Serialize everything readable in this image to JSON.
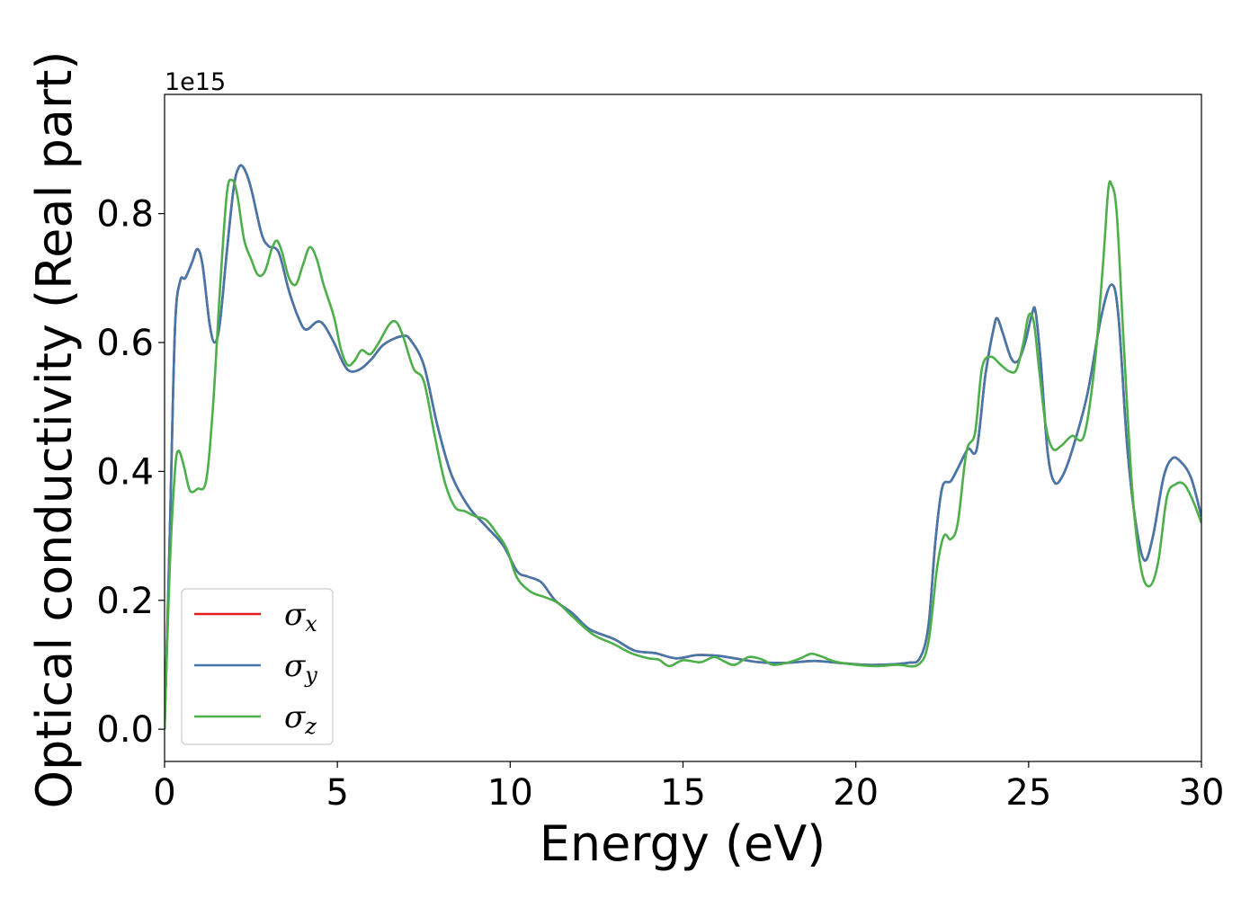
{
  "chart_data": {
    "type": "line",
    "xlabel": "Energy (eV)",
    "ylabel": "Optical conductivity (Real part)",
    "y_offset_text": "1e15",
    "xlim": [
      0,
      30
    ],
    "ylim": [
      -0.05,
      0.985
    ],
    "x_ticks": [
      0,
      5,
      10,
      15,
      20,
      25,
      30
    ],
    "x_tick_labels": [
      "0",
      "5",
      "10",
      "15",
      "20",
      "25",
      "30"
    ],
    "y_ticks": [
      0.0,
      0.2,
      0.4,
      0.6,
      0.8
    ],
    "y_tick_labels": [
      "0.0",
      "0.2",
      "0.4",
      "0.6",
      "0.8"
    ],
    "legend_position": "lower-left",
    "series": [
      {
        "name": "σx",
        "symbol": "σ",
        "subscript": "x",
        "color": "#e41a1c",
        "points": [
          [
            0,
            0
          ],
          [
            0.15,
            0.3
          ],
          [
            0.3,
            0.62
          ],
          [
            0.45,
            0.695
          ],
          [
            0.6,
            0.7
          ],
          [
            0.8,
            0.725
          ],
          [
            0.95,
            0.745
          ],
          [
            1.1,
            0.72
          ],
          [
            1.3,
            0.63
          ],
          [
            1.45,
            0.6
          ],
          [
            1.6,
            0.63
          ],
          [
            1.8,
            0.74
          ],
          [
            2.0,
            0.84
          ],
          [
            2.15,
            0.872
          ],
          [
            2.3,
            0.87
          ],
          [
            2.5,
            0.84
          ],
          [
            2.8,
            0.77
          ],
          [
            3.0,
            0.75
          ],
          [
            3.3,
            0.74
          ],
          [
            3.6,
            0.68
          ],
          [
            3.9,
            0.635
          ],
          [
            4.1,
            0.62
          ],
          [
            4.4,
            0.632
          ],
          [
            4.6,
            0.628
          ],
          [
            4.9,
            0.6
          ],
          [
            5.2,
            0.565
          ],
          [
            5.4,
            0.555
          ],
          [
            5.7,
            0.56
          ],
          [
            6.0,
            0.575
          ],
          [
            6.3,
            0.595
          ],
          [
            6.6,
            0.605
          ],
          [
            6.9,
            0.61
          ],
          [
            7.1,
            0.605
          ],
          [
            7.5,
            0.565
          ],
          [
            7.9,
            0.47
          ],
          [
            8.3,
            0.395
          ],
          [
            8.8,
            0.345
          ],
          [
            9.3,
            0.315
          ],
          [
            9.8,
            0.285
          ],
          [
            10.2,
            0.245
          ],
          [
            10.5,
            0.237
          ],
          [
            10.9,
            0.228
          ],
          [
            11.3,
            0.2
          ],
          [
            11.8,
            0.18
          ],
          [
            12.3,
            0.155
          ],
          [
            13.0,
            0.14
          ],
          [
            13.6,
            0.122
          ],
          [
            14.2,
            0.118
          ],
          [
            14.8,
            0.11
          ],
          [
            15.4,
            0.115
          ],
          [
            16.0,
            0.114
          ],
          [
            16.5,
            0.11
          ],
          [
            17.2,
            0.104
          ],
          [
            18.0,
            0.103
          ],
          [
            18.8,
            0.106
          ],
          [
            19.5,
            0.103
          ],
          [
            20.2,
            0.1
          ],
          [
            20.8,
            0.1
          ],
          [
            21.5,
            0.103
          ],
          [
            21.85,
            0.11
          ],
          [
            22.1,
            0.16
          ],
          [
            22.3,
            0.29
          ],
          [
            22.5,
            0.375
          ],
          [
            22.75,
            0.385
          ],
          [
            23.0,
            0.41
          ],
          [
            23.25,
            0.435
          ],
          [
            23.5,
            0.435
          ],
          [
            23.75,
            0.55
          ],
          [
            24.0,
            0.625
          ],
          [
            24.1,
            0.637
          ],
          [
            24.25,
            0.615
          ],
          [
            24.5,
            0.575
          ],
          [
            24.7,
            0.572
          ],
          [
            24.9,
            0.6
          ],
          [
            25.1,
            0.645
          ],
          [
            25.2,
            0.648
          ],
          [
            25.35,
            0.57
          ],
          [
            25.55,
            0.43
          ],
          [
            25.75,
            0.383
          ],
          [
            26.0,
            0.395
          ],
          [
            26.3,
            0.44
          ],
          [
            26.7,
            0.52
          ],
          [
            27.1,
            0.64
          ],
          [
            27.4,
            0.69
          ],
          [
            27.6,
            0.64
          ],
          [
            27.85,
            0.44
          ],
          [
            28.1,
            0.32
          ],
          [
            28.35,
            0.262
          ],
          [
            28.6,
            0.3
          ],
          [
            28.9,
            0.39
          ],
          [
            29.15,
            0.42
          ],
          [
            29.4,
            0.415
          ],
          [
            29.7,
            0.39
          ],
          [
            30.0,
            0.33
          ]
        ]
      },
      {
        "name": "σy",
        "symbol": "σ",
        "subscript": "y",
        "color": "#4477aa",
        "points": [
          [
            0,
            0
          ],
          [
            0.15,
            0.3
          ],
          [
            0.3,
            0.62
          ],
          [
            0.45,
            0.695
          ],
          [
            0.6,
            0.7
          ],
          [
            0.8,
            0.725
          ],
          [
            0.95,
            0.745
          ],
          [
            1.1,
            0.72
          ],
          [
            1.3,
            0.63
          ],
          [
            1.45,
            0.6
          ],
          [
            1.6,
            0.63
          ],
          [
            1.8,
            0.74
          ],
          [
            2.0,
            0.84
          ],
          [
            2.15,
            0.872
          ],
          [
            2.3,
            0.87
          ],
          [
            2.5,
            0.84
          ],
          [
            2.8,
            0.77
          ],
          [
            3.0,
            0.75
          ],
          [
            3.3,
            0.74
          ],
          [
            3.6,
            0.68
          ],
          [
            3.9,
            0.635
          ],
          [
            4.1,
            0.62
          ],
          [
            4.4,
            0.632
          ],
          [
            4.6,
            0.628
          ],
          [
            4.9,
            0.6
          ],
          [
            5.2,
            0.565
          ],
          [
            5.4,
            0.555
          ],
          [
            5.7,
            0.56
          ],
          [
            6.0,
            0.575
          ],
          [
            6.3,
            0.595
          ],
          [
            6.6,
            0.605
          ],
          [
            6.9,
            0.61
          ],
          [
            7.1,
            0.605
          ],
          [
            7.5,
            0.565
          ],
          [
            7.9,
            0.47
          ],
          [
            8.3,
            0.395
          ],
          [
            8.8,
            0.345
          ],
          [
            9.3,
            0.315
          ],
          [
            9.8,
            0.285
          ],
          [
            10.2,
            0.245
          ],
          [
            10.5,
            0.237
          ],
          [
            10.9,
            0.228
          ],
          [
            11.3,
            0.2
          ],
          [
            11.8,
            0.18
          ],
          [
            12.3,
            0.155
          ],
          [
            13.0,
            0.14
          ],
          [
            13.6,
            0.122
          ],
          [
            14.2,
            0.118
          ],
          [
            14.8,
            0.11
          ],
          [
            15.4,
            0.115
          ],
          [
            16.0,
            0.114
          ],
          [
            16.5,
            0.11
          ],
          [
            17.2,
            0.104
          ],
          [
            18.0,
            0.103
          ],
          [
            18.8,
            0.106
          ],
          [
            19.5,
            0.103
          ],
          [
            20.2,
            0.1
          ],
          [
            20.8,
            0.1
          ],
          [
            21.5,
            0.103
          ],
          [
            21.85,
            0.11
          ],
          [
            22.1,
            0.16
          ],
          [
            22.3,
            0.29
          ],
          [
            22.5,
            0.375
          ],
          [
            22.75,
            0.385
          ],
          [
            23.0,
            0.41
          ],
          [
            23.25,
            0.435
          ],
          [
            23.5,
            0.435
          ],
          [
            23.75,
            0.55
          ],
          [
            24.0,
            0.625
          ],
          [
            24.1,
            0.637
          ],
          [
            24.25,
            0.615
          ],
          [
            24.5,
            0.575
          ],
          [
            24.7,
            0.572
          ],
          [
            24.9,
            0.6
          ],
          [
            25.1,
            0.645
          ],
          [
            25.2,
            0.648
          ],
          [
            25.35,
            0.57
          ],
          [
            25.55,
            0.43
          ],
          [
            25.75,
            0.383
          ],
          [
            26.0,
            0.395
          ],
          [
            26.3,
            0.44
          ],
          [
            26.7,
            0.52
          ],
          [
            27.1,
            0.64
          ],
          [
            27.4,
            0.69
          ],
          [
            27.6,
            0.64
          ],
          [
            27.85,
            0.44
          ],
          [
            28.1,
            0.32
          ],
          [
            28.35,
            0.262
          ],
          [
            28.6,
            0.3
          ],
          [
            28.9,
            0.39
          ],
          [
            29.15,
            0.42
          ],
          [
            29.4,
            0.415
          ],
          [
            29.7,
            0.39
          ],
          [
            30.0,
            0.33
          ]
        ]
      },
      {
        "name": "σz",
        "symbol": "σ",
        "subscript": "z",
        "color": "#4daf4a",
        "points": [
          [
            0,
            0
          ],
          [
            0.15,
            0.25
          ],
          [
            0.3,
            0.4
          ],
          [
            0.4,
            0.432
          ],
          [
            0.55,
            0.41
          ],
          [
            0.7,
            0.375
          ],
          [
            0.8,
            0.368
          ],
          [
            0.95,
            0.373
          ],
          [
            1.2,
            0.385
          ],
          [
            1.4,
            0.5
          ],
          [
            1.6,
            0.68
          ],
          [
            1.8,
            0.83
          ],
          [
            1.95,
            0.852
          ],
          [
            2.1,
            0.83
          ],
          [
            2.3,
            0.76
          ],
          [
            2.5,
            0.73
          ],
          [
            2.7,
            0.705
          ],
          [
            2.9,
            0.71
          ],
          [
            3.1,
            0.745
          ],
          [
            3.25,
            0.758
          ],
          [
            3.4,
            0.74
          ],
          [
            3.6,
            0.7
          ],
          [
            3.8,
            0.69
          ],
          [
            4.0,
            0.72
          ],
          [
            4.2,
            0.748
          ],
          [
            4.4,
            0.73
          ],
          [
            4.6,
            0.69
          ],
          [
            4.9,
            0.64
          ],
          [
            5.1,
            0.59
          ],
          [
            5.3,
            0.565
          ],
          [
            5.5,
            0.572
          ],
          [
            5.7,
            0.588
          ],
          [
            5.95,
            0.582
          ],
          [
            6.2,
            0.6
          ],
          [
            6.5,
            0.628
          ],
          [
            6.7,
            0.632
          ],
          [
            6.9,
            0.61
          ],
          [
            7.2,
            0.56
          ],
          [
            7.5,
            0.54
          ],
          [
            7.8,
            0.46
          ],
          [
            8.1,
            0.385
          ],
          [
            8.4,
            0.345
          ],
          [
            8.7,
            0.338
          ],
          [
            9.0,
            0.33
          ],
          [
            9.3,
            0.325
          ],
          [
            9.6,
            0.305
          ],
          [
            9.9,
            0.28
          ],
          [
            10.2,
            0.235
          ],
          [
            10.6,
            0.213
          ],
          [
            11.0,
            0.205
          ],
          [
            11.4,
            0.195
          ],
          [
            11.8,
            0.175
          ],
          [
            12.4,
            0.147
          ],
          [
            13.0,
            0.132
          ],
          [
            13.5,
            0.118
          ],
          [
            14.0,
            0.11
          ],
          [
            14.3,
            0.108
          ],
          [
            14.6,
            0.098
          ],
          [
            15.0,
            0.107
          ],
          [
            15.5,
            0.104
          ],
          [
            15.9,
            0.112
          ],
          [
            16.2,
            0.105
          ],
          [
            16.5,
            0.1
          ],
          [
            16.9,
            0.112
          ],
          [
            17.3,
            0.108
          ],
          [
            17.6,
            0.1
          ],
          [
            18.0,
            0.103
          ],
          [
            18.4,
            0.11
          ],
          [
            18.7,
            0.117
          ],
          [
            19.0,
            0.113
          ],
          [
            19.4,
            0.105
          ],
          [
            20.0,
            0.1
          ],
          [
            20.6,
            0.098
          ],
          [
            21.2,
            0.1
          ],
          [
            21.8,
            0.1
          ],
          [
            22.1,
            0.135
          ],
          [
            22.35,
            0.25
          ],
          [
            22.55,
            0.3
          ],
          [
            22.75,
            0.295
          ],
          [
            22.95,
            0.32
          ],
          [
            23.2,
            0.43
          ],
          [
            23.45,
            0.46
          ],
          [
            23.65,
            0.56
          ],
          [
            23.9,
            0.578
          ],
          [
            24.2,
            0.565
          ],
          [
            24.45,
            0.555
          ],
          [
            24.65,
            0.558
          ],
          [
            24.85,
            0.6
          ],
          [
            25.0,
            0.642
          ],
          [
            25.15,
            0.632
          ],
          [
            25.3,
            0.56
          ],
          [
            25.5,
            0.47
          ],
          [
            25.7,
            0.435
          ],
          [
            25.95,
            0.44
          ],
          [
            26.25,
            0.455
          ],
          [
            26.6,
            0.455
          ],
          [
            26.9,
            0.56
          ],
          [
            27.15,
            0.72
          ],
          [
            27.3,
            0.835
          ],
          [
            27.4,
            0.845
          ],
          [
            27.55,
            0.8
          ],
          [
            27.75,
            0.6
          ],
          [
            28.0,
            0.37
          ],
          [
            28.25,
            0.25
          ],
          [
            28.5,
            0.222
          ],
          [
            28.75,
            0.26
          ],
          [
            29.0,
            0.36
          ],
          [
            29.25,
            0.38
          ],
          [
            29.5,
            0.38
          ],
          [
            29.75,
            0.355
          ],
          [
            30.0,
            0.32
          ]
        ]
      }
    ]
  }
}
